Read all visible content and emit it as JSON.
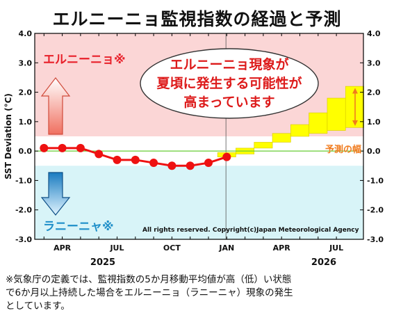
{
  "title": "エルニーニョ監視指数の経過と予測",
  "chart_data": {
    "type": "line",
    "ylabel": "SST Deviation (°C)",
    "ylim": [
      -3.0,
      4.0
    ],
    "yticks": [
      "4.0",
      "3.0",
      "2.0",
      "1.0",
      "0.0",
      "-1.0",
      "-2.0",
      "-3.0"
    ],
    "month_ticks": [
      "APR",
      "JUL",
      "OCT",
      "JAN",
      "APR",
      "JUL"
    ],
    "year_labels": [
      "2025",
      "2026"
    ],
    "el_nino_label": "エルニーニョ※",
    "la_nina_label": "ラニーニャ※",
    "forecast_range_label": "予測の幅",
    "copyright": "All rights reserved. Copyright(c)Japan Meteorological Agency",
    "callout": [
      "エルニーニョ現象が",
      "夏頃に発生する可能性が",
      "高まっています"
    ],
    "thresholds": {
      "upper": 0.5,
      "lower": -0.5
    },
    "colors": {
      "el_nino_zone": "#fbd6d6",
      "la_nina_zone": "#d8f4f8",
      "observed": "#ee1111",
      "forecast_box": "#ffff00",
      "zero_line": "#66cc33",
      "el_nino_text": "#e8202a",
      "la_nina_text": "#1f8fc9",
      "range_label": "#f07b1e"
    },
    "observed": {
      "months": [
        "2025-03",
        "2025-04",
        "2025-05",
        "2025-06",
        "2025-07",
        "2025-08",
        "2025-09",
        "2025-10",
        "2025-11",
        "2025-12",
        "2026-01"
      ],
      "values": [
        0.1,
        0.1,
        0.1,
        -0.1,
        -0.3,
        -0.3,
        -0.4,
        -0.5,
        -0.5,
        -0.4,
        -0.2
      ]
    },
    "forecast": {
      "months": [
        "2026-01",
        "2026-02",
        "2026-03",
        "2026-04",
        "2026-05",
        "2026-06",
        "2026-07",
        "2026-08"
      ],
      "low": [
        -0.2,
        -0.1,
        0.1,
        0.3,
        0.5,
        0.6,
        0.7,
        0.8
      ],
      "high": [
        -0.05,
        0.1,
        0.3,
        0.6,
        0.9,
        1.3,
        1.8,
        2.2
      ]
    }
  },
  "footnote": [
    "※気象庁の定義では、監視指数の5か月移動平均値が高（低）い状態",
    "で6か月以上持続した場合をエルニーニョ（ラニーニャ）現象の発生",
    "としています。"
  ]
}
